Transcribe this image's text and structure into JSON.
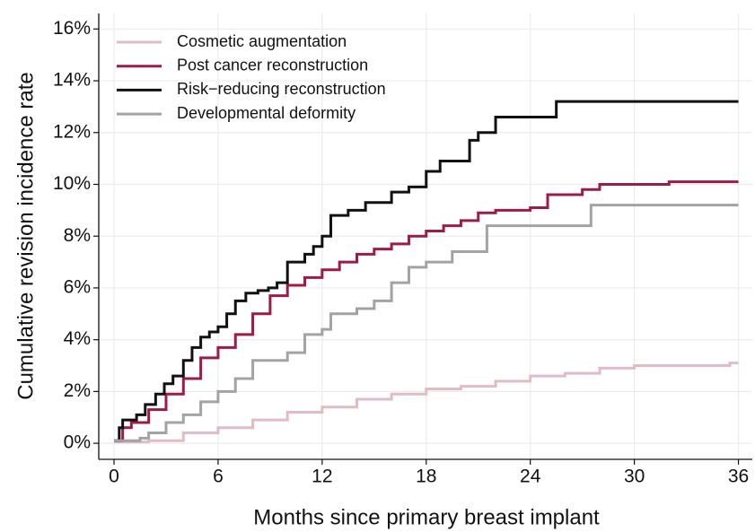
{
  "chart_data": {
    "type": "step",
    "xlabel": "Months since primary breast implant",
    "ylabel": "Cumulative revision incidence rate",
    "xlim": [
      -0.88,
      36.8
    ],
    "ylim": [
      -0.62,
      16.6
    ],
    "xticks": [
      0,
      6,
      12,
      18,
      24,
      30,
      36
    ],
    "yticks": [
      {
        "value": 0,
        "label": "0%"
      },
      {
        "value": 2,
        "label": "2%"
      },
      {
        "value": 4,
        "label": "4%"
      },
      {
        "value": 6,
        "label": "6%"
      },
      {
        "value": 8,
        "label": "8%"
      },
      {
        "value": 10,
        "label": "10%"
      },
      {
        "value": 12,
        "label": "12%"
      },
      {
        "value": 14,
        "label": "14%"
      },
      {
        "value": 16,
        "label": "16%"
      }
    ],
    "grid": true,
    "legend": "upper left",
    "series": [
      {
        "name": "Cosmetic augmentation",
        "color": "#e2bcc5",
        "x": [
          0,
          2,
          4,
          6,
          8,
          10,
          12,
          14,
          16,
          18,
          20,
          22,
          24,
          26,
          28,
          30,
          34,
          35.5,
          36
        ],
        "values": [
          0.05,
          0.1,
          0.4,
          0.6,
          0.9,
          1.2,
          1.4,
          1.7,
          1.9,
          2.1,
          2.2,
          2.4,
          2.6,
          2.7,
          2.9,
          3.0,
          3.0,
          3.1,
          3.1
        ]
      },
      {
        "name": "Post cancer reconstruction",
        "color": "#9c1c47",
        "x": [
          0,
          0.5,
          1,
          2,
          3,
          4,
          5,
          6,
          7,
          8,
          9,
          10,
          11,
          12,
          13,
          14,
          15,
          16,
          17,
          18,
          19,
          20,
          21,
          22,
          24,
          25,
          27,
          28,
          32,
          36
        ],
        "values": [
          0.1,
          0.6,
          0.8,
          1.3,
          1.9,
          2.5,
          3.3,
          3.7,
          4.2,
          5.0,
          5.7,
          6.1,
          6.4,
          6.7,
          7.0,
          7.3,
          7.5,
          7.7,
          8.0,
          8.2,
          8.4,
          8.6,
          8.9,
          9.0,
          9.1,
          9.6,
          9.8,
          10.0,
          10.1,
          10.1
        ]
      },
      {
        "name": "Risk−reducing reconstruction",
        "color": "#111111",
        "x": [
          0,
          0.3,
          0.5,
          1.3,
          1.8,
          2.4,
          2.9,
          3.4,
          4,
          4.5,
          5,
          5.5,
          6,
          6.5,
          7,
          7.6,
          8.3,
          8.9,
          9.4,
          10,
          11,
          11.5,
          12,
          12.5,
          13.5,
          14.5,
          16,
          17,
          18,
          18.8,
          20.5,
          21,
          22,
          25.5,
          36
        ],
        "values": [
          0.1,
          0.6,
          0.9,
          1.1,
          1.5,
          1.9,
          2.3,
          2.6,
          3.2,
          3.7,
          4.1,
          4.3,
          4.5,
          5.0,
          5.5,
          5.8,
          5.9,
          6.0,
          6.2,
          7.0,
          7.3,
          7.6,
          8.0,
          8.8,
          9.0,
          9.3,
          9.7,
          9.9,
          10.5,
          10.9,
          11.7,
          12.0,
          12.6,
          13.2,
          13.2
        ]
      },
      {
        "name": "Developmental deformity",
        "color": "#a3a3a3",
        "x": [
          0,
          1.5,
          2,
          3,
          4,
          5,
          6,
          7,
          8,
          10,
          11,
          12,
          12.5,
          14,
          15,
          16,
          17,
          18,
          19.5,
          21.5,
          27.5,
          36
        ],
        "values": [
          0.1,
          0.2,
          0.4,
          0.8,
          1.1,
          1.6,
          2.0,
          2.5,
          3.2,
          3.5,
          4.2,
          4.4,
          5.0,
          5.2,
          5.5,
          6.2,
          6.8,
          7.0,
          7.4,
          8.4,
          9.2,
          9.2
        ]
      }
    ]
  }
}
